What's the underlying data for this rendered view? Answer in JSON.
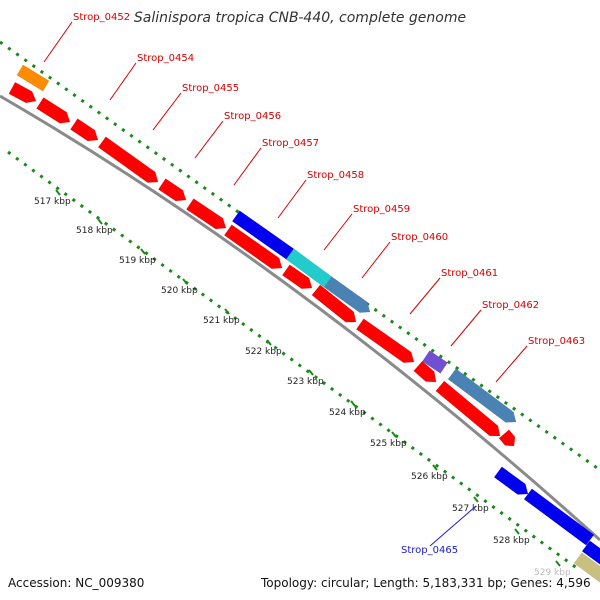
{
  "header": {
    "title": "Salinispora tropica CNB-440, complete genome"
  },
  "footer": {
    "accession": "Accession: NC_009380",
    "summary": "Topology: circular; Length: 5,183,331 bp; Genes: 4,596"
  },
  "ticks": [
    {
      "label": "517 kbp"
    },
    {
      "label": "518 kbp"
    },
    {
      "label": "519 kbp"
    },
    {
      "label": "520 kbp"
    },
    {
      "label": "521 kbp"
    },
    {
      "label": "522 kbp"
    },
    {
      "label": "523 kbp"
    },
    {
      "label": "524 kbp"
    },
    {
      "label": "525 kbp"
    },
    {
      "label": "526 kbp"
    },
    {
      "label": "527 kbp"
    },
    {
      "label": "528 kbp"
    },
    {
      "label": "529 kbp"
    }
  ],
  "gene_labels": [
    {
      "label": "Strop_0452",
      "color": "#d40000"
    },
    {
      "label": "Strop_0454",
      "color": "#d40000"
    },
    {
      "label": "Strop_0455",
      "color": "#d40000"
    },
    {
      "label": "Strop_0456",
      "color": "#d40000"
    },
    {
      "label": "Strop_0457",
      "color": "#d40000"
    },
    {
      "label": "Strop_0458",
      "color": "#d40000"
    },
    {
      "label": "Strop_0459",
      "color": "#d40000"
    },
    {
      "label": "Strop_0460",
      "color": "#d40000"
    },
    {
      "label": "Strop_0461",
      "color": "#d40000"
    },
    {
      "label": "Strop_0462",
      "color": "#d40000"
    },
    {
      "label": "Strop_0463",
      "color": "#d40000"
    },
    {
      "label": "Strop_0465",
      "color": "#1a1ad4"
    }
  ],
  "colors": {
    "cds": "#ff0000",
    "blue": "#0000ee",
    "steel": "#4a82b4",
    "cyan": "#22cccc",
    "orange": "#ff8c00",
    "purple": "#7050d0",
    "khaki": "#c8c080",
    "backbone": "#888888",
    "gc_dots": "#1a8a1a"
  }
}
